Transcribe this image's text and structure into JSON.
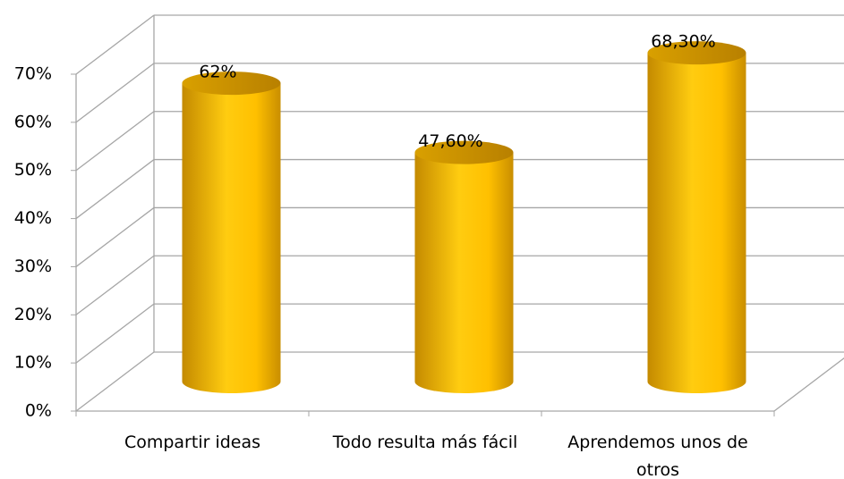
{
  "chart_data": {
    "type": "bar",
    "categories": [
      "Compartir ideas",
      "Todo resulta más fácil",
      "Aprendemos unos de otros"
    ],
    "values": [
      62,
      47.6,
      68.3
    ],
    "value_labels": [
      "62%",
      "47,60%",
      "68,30%"
    ],
    "color": "#ffc000",
    "ylim": [
      0,
      70
    ],
    "yticks": [
      {
        "value": 0,
        "label": "0%"
      },
      {
        "value": 10,
        "label": "10%"
      },
      {
        "value": 20,
        "label": "20%"
      },
      {
        "value": 30,
        "label": "30%"
      },
      {
        "value": 40,
        "label": "40%"
      },
      {
        "value": 50,
        "label": "50%"
      },
      {
        "value": 60,
        "label": "60%"
      },
      {
        "value": 70,
        "label": "70%"
      }
    ],
    "grid": true
  }
}
